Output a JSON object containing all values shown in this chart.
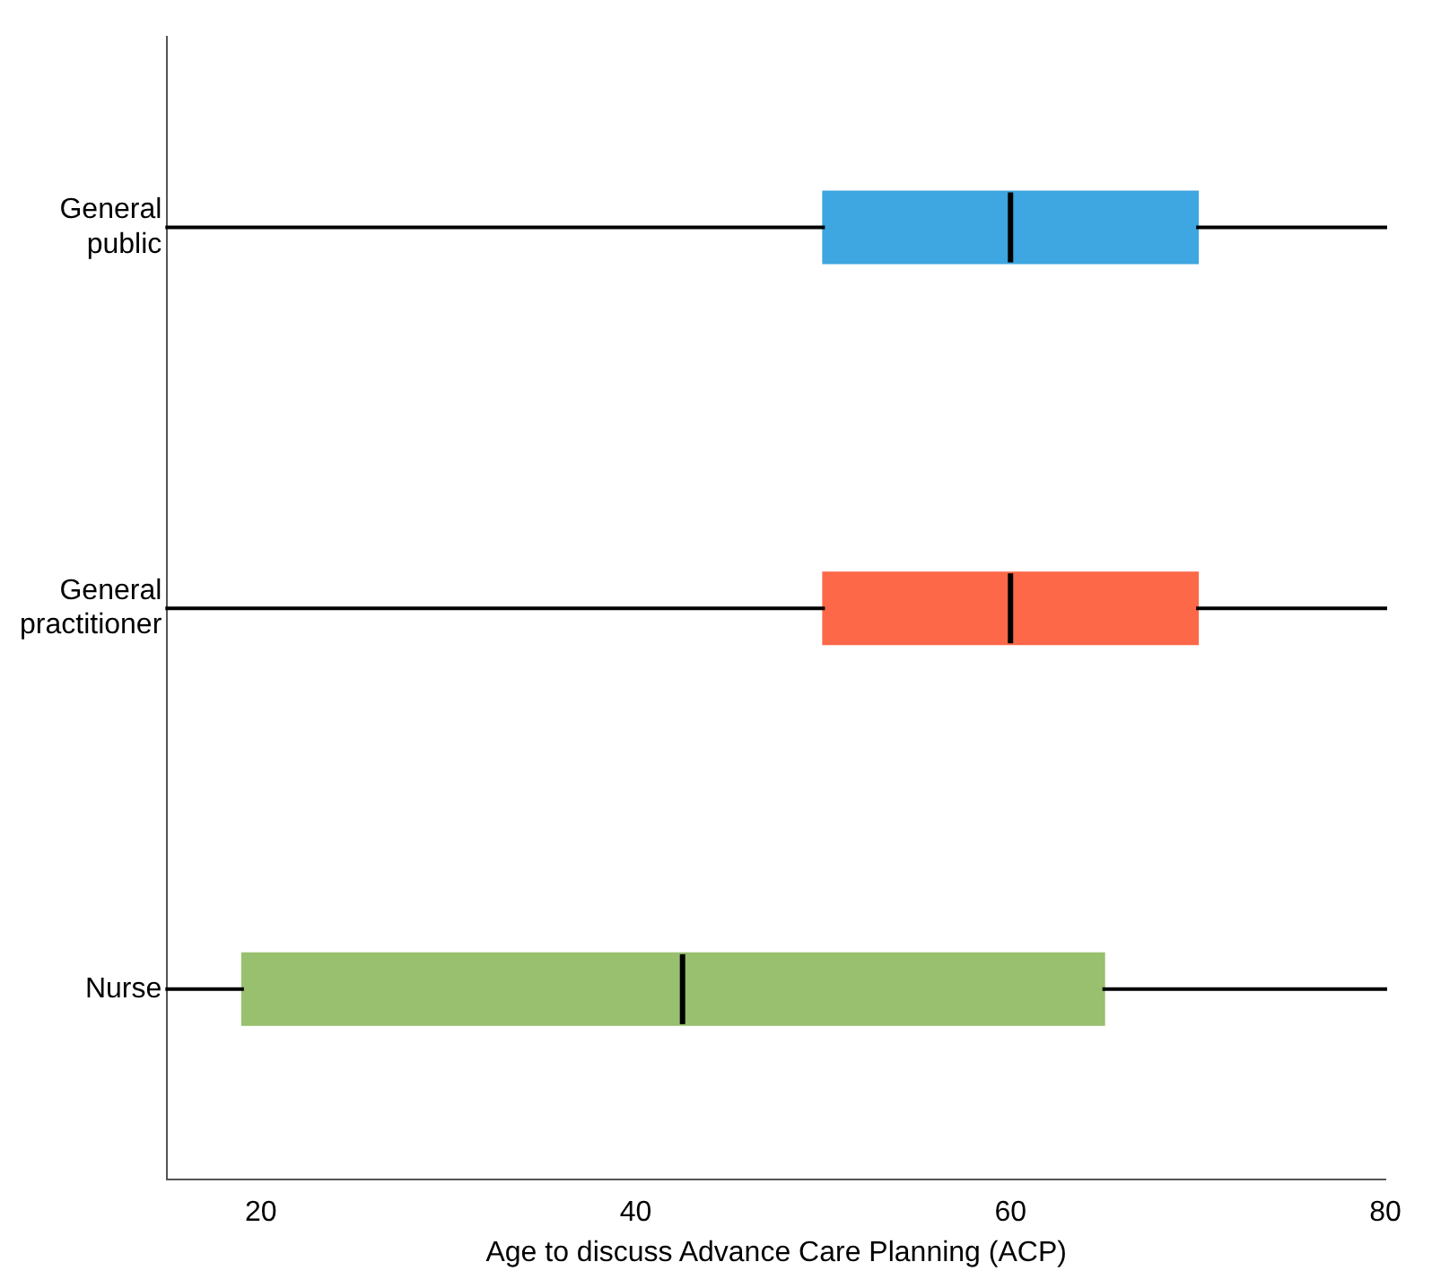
{
  "chart_data": {
    "type": "box",
    "orientation": "horizontal",
    "xlabel": "Age to discuss Advance Care Planning (ACP)",
    "categories": [
      "General public",
      "General practitioner",
      "Nurse"
    ],
    "colors": [
      "#3ea6e0",
      "#fd6848",
      "#98c06e"
    ],
    "boxes": [
      {
        "low": 15,
        "q1": 50,
        "median": 60,
        "q3": 70,
        "high": 80
      },
      {
        "low": 15,
        "q1": 50,
        "median": 60,
        "q3": 70,
        "high": 80
      },
      {
        "low": 15,
        "q1": 19,
        "median": 42.5,
        "q3": 65,
        "high": 80
      }
    ],
    "xlim": [
      15,
      80
    ],
    "xticks": [
      20,
      40,
      60,
      80
    ],
    "grid": false,
    "legend": false
  }
}
